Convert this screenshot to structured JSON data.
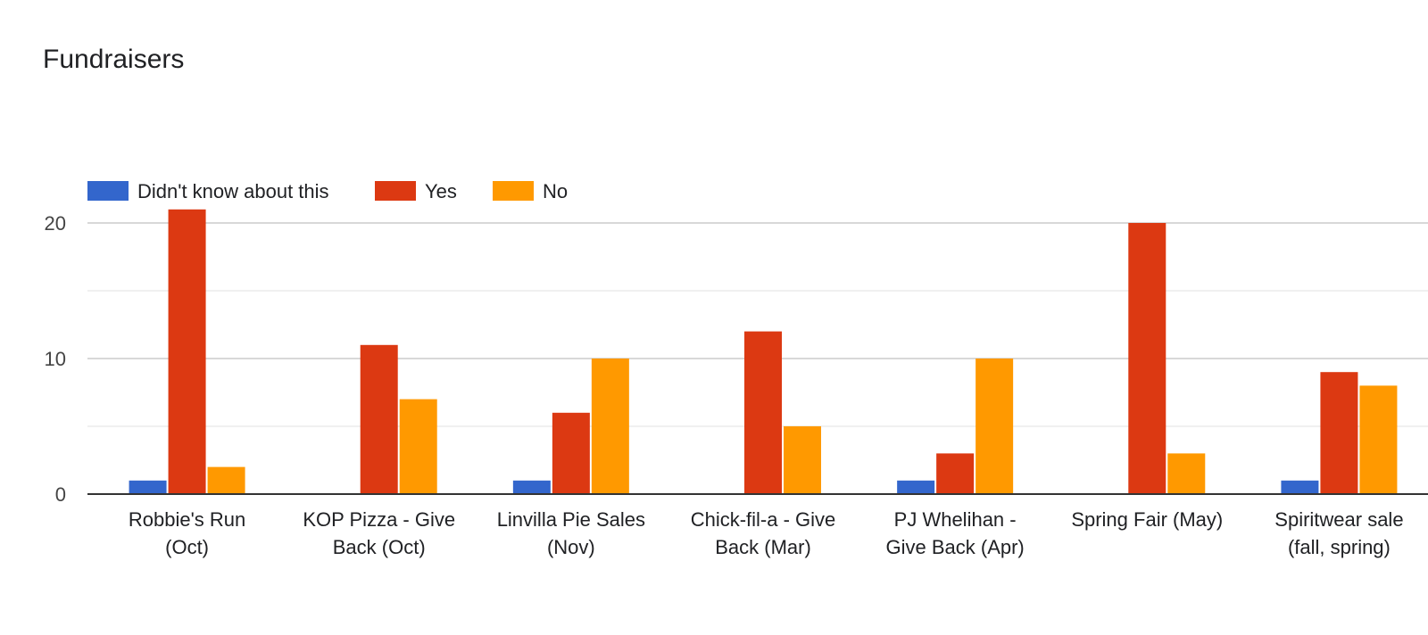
{
  "chart_data": {
    "type": "bar",
    "title": "Fundraisers",
    "categories": [
      [
        "Robbie's Run",
        "(Oct)"
      ],
      [
        "KOP Pizza - Give",
        "Back (Oct)"
      ],
      [
        "Linvilla Pie Sales",
        "(Nov)"
      ],
      [
        "Chick-fil-a - Give",
        "Back (Mar)"
      ],
      [
        "PJ Whelihan -",
        "Give Back (Apr)"
      ],
      [
        "Spring Fair (May)"
      ],
      [
        "Spiritwear sale",
        "(fall, spring)"
      ]
    ],
    "series": [
      {
        "name": "Didn't know about this",
        "color": "#3366cc",
        "values": [
          1,
          0,
          1,
          0,
          1,
          0,
          1
        ]
      },
      {
        "name": "Yes",
        "color": "#dc3912",
        "values": [
          21,
          11,
          6,
          12,
          3,
          20,
          9
        ]
      },
      {
        "name": "No",
        "color": "#ff9900",
        "values": [
          2,
          7,
          10,
          5,
          10,
          3,
          8
        ]
      }
    ],
    "yticks": [
      0,
      10,
      20
    ],
    "ylim": [
      0,
      20
    ],
    "grid": true,
    "legend": "top-left"
  }
}
